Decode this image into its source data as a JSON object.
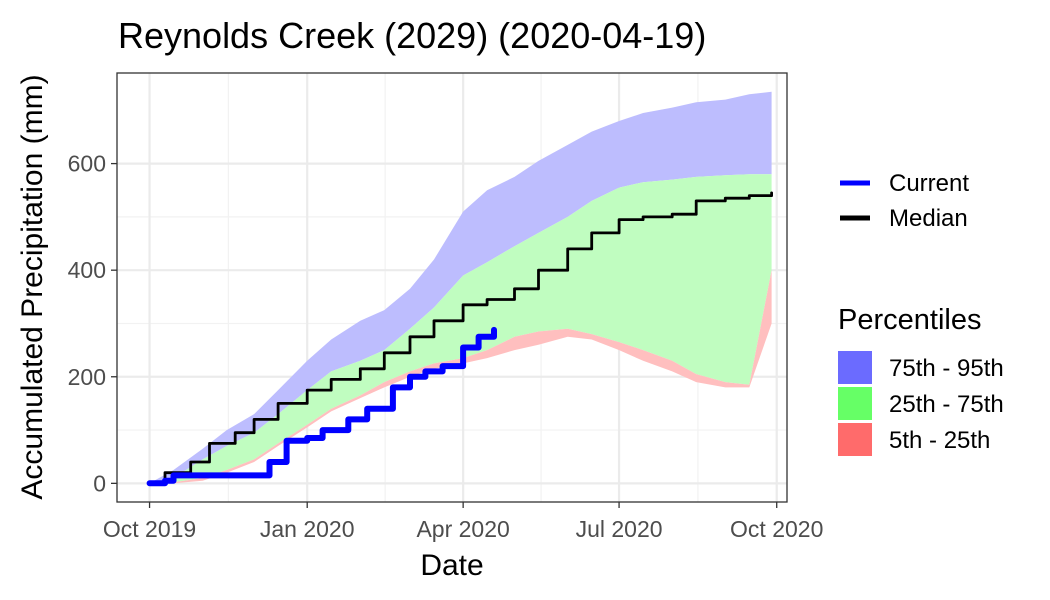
{
  "chart_data": {
    "type": "area",
    "title": "Reynolds Creek (2029) (2020-04-19)",
    "xlabel": "Date",
    "ylabel": "Accumulated Precipitation (mm)",
    "x_ticks": [
      "Oct 2019",
      "Jan 2020",
      "Apr 2020",
      "Jul 2020",
      "Oct 2020"
    ],
    "x_tick_dates": [
      "2019-10-01",
      "2020-01-01",
      "2020-04-01",
      "2020-07-01",
      "2020-10-01"
    ],
    "xlim": [
      "2019-09-12",
      "2020-10-07"
    ],
    "y_ticks": [
      0,
      200,
      400,
      600
    ],
    "ylim": [
      -35,
      770
    ],
    "grid": true,
    "legend_placement": "right",
    "lines_legend": [
      {
        "name": "Current",
        "color": "#0000ff"
      },
      {
        "name": "Median",
        "color": "#000000"
      }
    ],
    "percentiles_legend_title": "Percentiles",
    "bands": [
      {
        "name": "75th - 95th",
        "color": "#6b6bff",
        "fill": "#bdbdfe"
      },
      {
        "name": "25th - 75th",
        "color": "#66ff66",
        "fill": "#c0fdc0"
      },
      {
        "name": "5th - 25th",
        "color": "#ff6b6b",
        "fill": "#ffbfbf"
      }
    ],
    "band_x": [
      "2019-10-01",
      "2019-10-15",
      "2019-11-01",
      "2019-11-15",
      "2019-12-01",
      "2019-12-15",
      "2020-01-01",
      "2020-01-15",
      "2020-02-01",
      "2020-02-15",
      "2020-03-01",
      "2020-03-15",
      "2020-04-01",
      "2020-04-15",
      "2020-05-01",
      "2020-05-15",
      "2020-06-01",
      "2020-06-15",
      "2020-07-01",
      "2020-07-15",
      "2020-08-01",
      "2020-08-15",
      "2020-09-01",
      "2020-09-15",
      "2020-09-28"
    ],
    "p95": [
      0,
      25,
      65,
      100,
      130,
      175,
      230,
      270,
      305,
      325,
      365,
      420,
      510,
      550,
      575,
      605,
      635,
      660,
      680,
      695,
      705,
      715,
      720,
      730,
      735
    ],
    "p75": [
      0,
      10,
      45,
      70,
      95,
      130,
      175,
      210,
      230,
      250,
      290,
      330,
      390,
      415,
      445,
      470,
      500,
      530,
      555,
      565,
      570,
      575,
      578,
      580,
      580
    ],
    "p25": [
      0,
      2,
      10,
      25,
      45,
      75,
      110,
      140,
      165,
      190,
      210,
      225,
      235,
      250,
      275,
      285,
      290,
      280,
      265,
      250,
      230,
      205,
      190,
      185,
      400
    ],
    "p05": [
      0,
      0,
      5,
      20,
      40,
      70,
      105,
      135,
      160,
      180,
      200,
      215,
      225,
      235,
      250,
      260,
      275,
      270,
      250,
      230,
      210,
      190,
      180,
      180,
      300
    ],
    "series": [
      {
        "name": "Median",
        "color": "#000000",
        "x": [
          "2019-10-01",
          "2019-10-10",
          "2019-10-25",
          "2019-11-05",
          "2019-11-20",
          "2019-12-01",
          "2019-12-15",
          "2020-01-01",
          "2020-01-15",
          "2020-02-01",
          "2020-02-15",
          "2020-03-01",
          "2020-03-15",
          "2020-04-01",
          "2020-04-15",
          "2020-05-01",
          "2020-05-15",
          "2020-06-01",
          "2020-06-15",
          "2020-07-01",
          "2020-07-15",
          "2020-08-01",
          "2020-08-15",
          "2020-09-01",
          "2020-09-15",
          "2020-09-28"
        ],
        "values": [
          0,
          20,
          40,
          75,
          95,
          120,
          150,
          175,
          195,
          215,
          245,
          275,
          305,
          335,
          345,
          365,
          400,
          440,
          470,
          495,
          500,
          505,
          530,
          535,
          540,
          545
        ]
      },
      {
        "name": "Current",
        "color": "#0000ff",
        "x": [
          "2019-10-01",
          "2019-10-10",
          "2019-10-15",
          "2019-11-01",
          "2019-11-15",
          "2019-12-01",
          "2019-12-10",
          "2019-12-20",
          "2020-01-01",
          "2020-01-10",
          "2020-01-25",
          "2020-02-05",
          "2020-02-20",
          "2020-03-01",
          "2020-03-10",
          "2020-03-20",
          "2020-04-01",
          "2020-04-10",
          "2020-04-19"
        ],
        "values": [
          0,
          5,
          15,
          15,
          15,
          15,
          40,
          80,
          85,
          100,
          120,
          140,
          180,
          200,
          210,
          220,
          255,
          275,
          288
        ]
      }
    ]
  }
}
